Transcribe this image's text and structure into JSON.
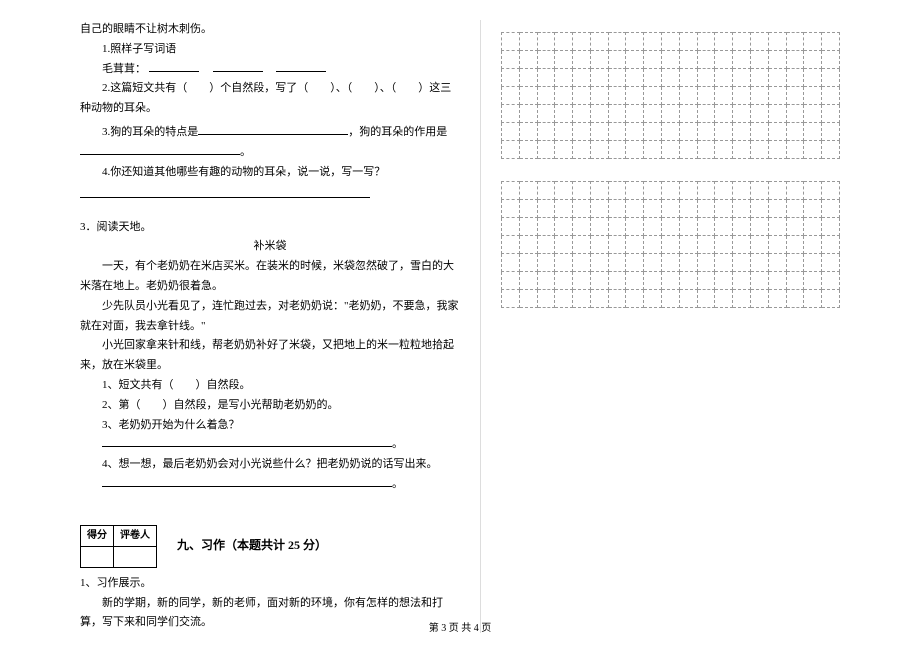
{
  "q2_continuation": {
    "l0": "自己的眼睛不让树木刺伤。",
    "l1": "1.照样子写词语",
    "l2_prefix": "毛茸茸：",
    "l3": "2.这篇短文共有（　　）个自然段，写了（　　）、（　　）、（　　）这三种动物的耳朵。",
    "l4a": "3.狗的耳朵的特点是",
    "l4b": "，狗的耳朵的作用是",
    "l5": "。",
    "l6": "4.你还知道其他哪些有趣的动物的耳朵，说一说，写一写？"
  },
  "q3": {
    "head": "3．阅读天地。",
    "title": "补米袋",
    "p1": "一天，有个老奶奶在米店买米。在装米的时候，米袋忽然破了，雪白的大米落在地上。老奶奶很着急。",
    "p2": "少先队员小光看见了，连忙跑过去，对老奶奶说：\"老奶奶，不要急，我家就在对面，我去拿针线。\"",
    "p3": "小光回家拿来针和线，帮老奶奶补好了米袋，又把地上的米一粒粒地拾起来，放在米袋里。",
    "q1": "1、短文共有（　　）自然段。",
    "q2": "2、第（　　）自然段，是写小光帮助老奶奶的。",
    "q3": "3、老奶奶开始为什么着急？",
    "q4": "4、想一想，最后老奶奶会对小光说些什么？把老奶奶说的话写出来。",
    "period": "。"
  },
  "score": {
    "h1": "得分",
    "h2": "评卷人"
  },
  "section9": {
    "title": "九、习作（本题共计 25 分）",
    "item1_head": "1、习作展示。",
    "item1_body": "新的学期，新的同学，新的老师，面对新的环境，你有怎样的想法和打　算，写下来和同学们交流。"
  },
  "grid": {
    "rows": 7,
    "cols": 19,
    "blocks": 2
  },
  "footer": "第 3 页 共 4 页"
}
